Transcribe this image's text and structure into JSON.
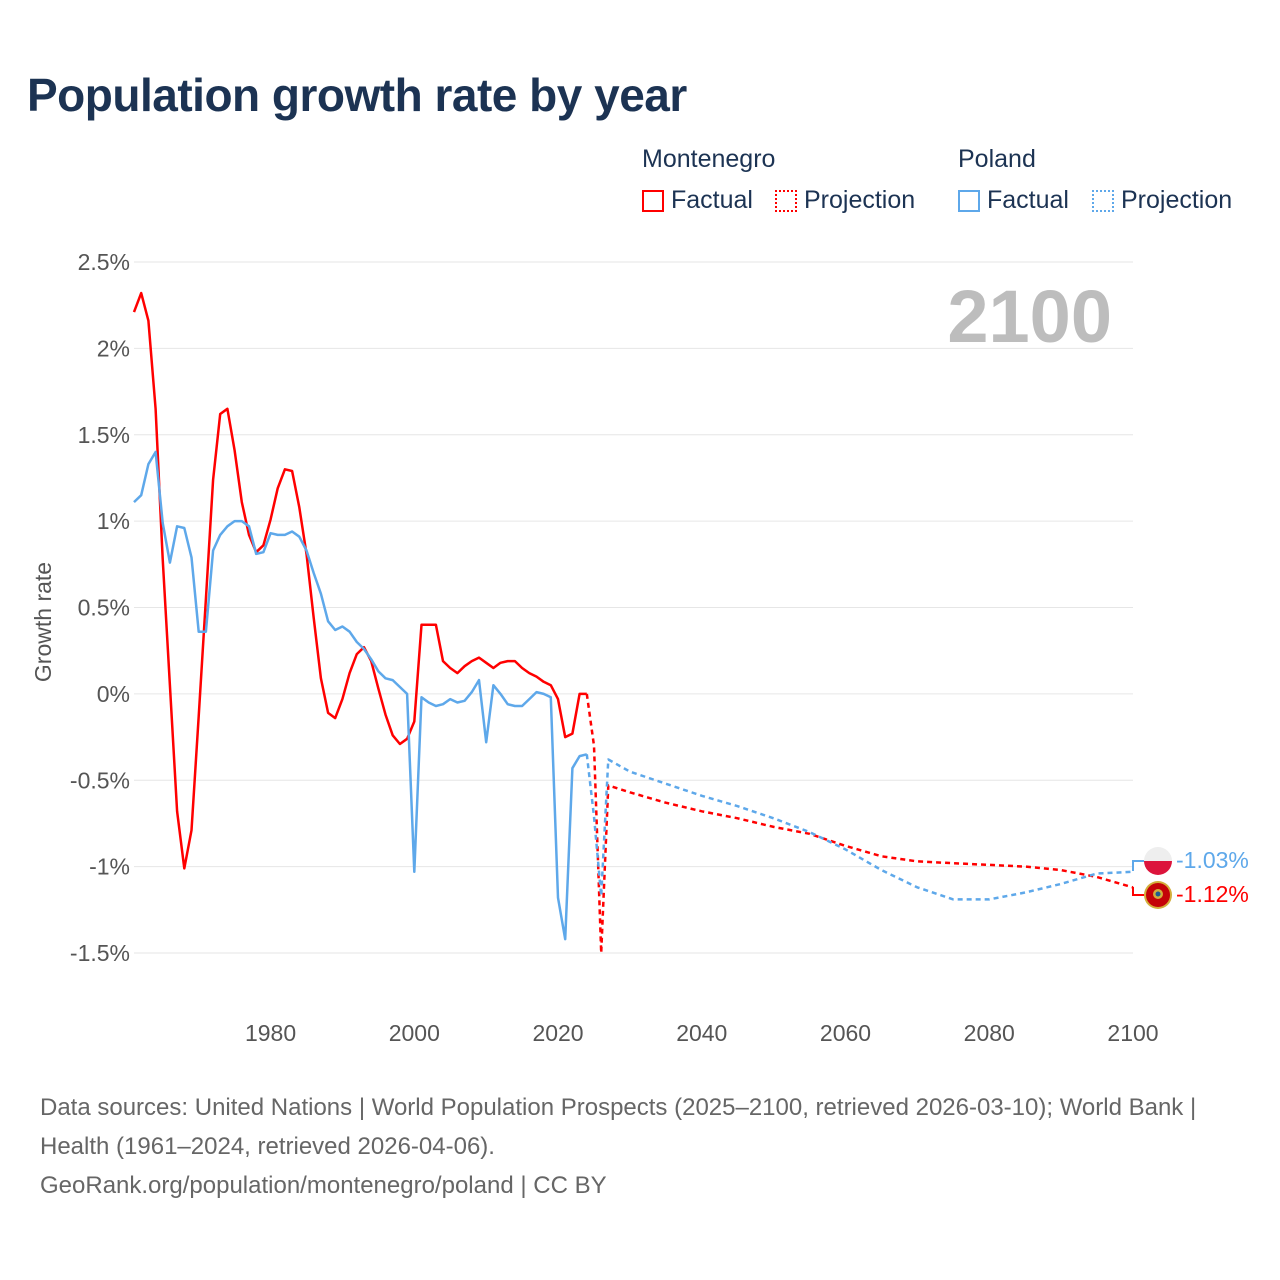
{
  "title": "Population growth rate by year",
  "legend": {
    "groups": [
      {
        "country": "Montenegro",
        "factual": "Factual",
        "projection": "Projection",
        "color": "#ff0000"
      },
      {
        "country": "Poland",
        "factual": "Factual",
        "projection": "Projection",
        "color": "#5ea8ea"
      }
    ]
  },
  "year_label": "2100",
  "end_labels": {
    "poland": "-1.03%",
    "montenegro": "-1.12%"
  },
  "footer": {
    "sources": "Data sources: United Nations | World Population Prospects (2025–2100, retrieved 2026-03-10); World Bank | Health (1961–2024, retrieved 2026-04-06).",
    "link": "GeoRank.org/population/montenegro/poland | CC BY"
  },
  "chart_data": {
    "type": "line",
    "title": "Population growth rate by year",
    "xlabel": "",
    "ylabel": "Growth rate",
    "xlim": [
      1961,
      2100
    ],
    "ylim": [
      -1.5,
      2.5
    ],
    "yticks": [
      2.5,
      2,
      1.5,
      1,
      0.5,
      0,
      -0.5,
      -1,
      -1.5
    ],
    "ytick_labels": [
      "2.5%",
      "2%",
      "1.5%",
      "1%",
      "0.5%",
      "0%",
      "-0.5%",
      "-1%",
      "-1.5%"
    ],
    "xticks": [
      1980,
      2000,
      2020,
      2040,
      2060,
      2080,
      2100
    ],
    "xtick_labels": [
      "1980",
      "2000",
      "2020",
      "2040",
      "2060",
      "2080",
      "2100"
    ],
    "grid": true,
    "legend_position": "top-right",
    "series": [
      {
        "name": "Montenegro Factual",
        "color": "#ff0000",
        "style": "solid",
        "x": [
          1961,
          1962,
          1963,
          1964,
          1965,
          1966,
          1967,
          1968,
          1969,
          1970,
          1971,
          1972,
          1973,
          1974,
          1975,
          1976,
          1977,
          1978,
          1979,
          1980,
          1981,
          1982,
          1983,
          1984,
          1985,
          1986,
          1987,
          1988,
          1989,
          1990,
          1991,
          1992,
          1993,
          1994,
          1995,
          1996,
          1997,
          1998,
          1999,
          2000,
          2001,
          2002,
          2003,
          2004,
          2005,
          2006,
          2007,
          2008,
          2009,
          2010,
          2011,
          2012,
          2013,
          2014,
          2015,
          2016,
          2017,
          2018,
          2019,
          2020,
          2021,
          2022,
          2023,
          2024
        ],
        "y": [
          2.21,
          2.32,
          2.16,
          1.65,
          0.78,
          0.05,
          -0.68,
          -1.01,
          -0.79,
          -0.13,
          0.55,
          1.24,
          1.62,
          1.65,
          1.41,
          1.11,
          0.92,
          0.82,
          0.86,
          1.01,
          1.19,
          1.3,
          1.29,
          1.08,
          0.81,
          0.44,
          0.09,
          -0.11,
          -0.14,
          -0.03,
          0.12,
          0.23,
          0.27,
          0.19,
          0.03,
          -0.12,
          -0.24,
          -0.29,
          -0.26,
          -0.16,
          0.4,
          0.4,
          0.4,
          0.19,
          0.15,
          0.12,
          0.16,
          0.19,
          0.21,
          0.18,
          0.15,
          0.18,
          0.19,
          0.19,
          0.15,
          0.12,
          0.1,
          0.07,
          0.05,
          -0.03,
          -0.25,
          -0.23,
          0.0,
          0.0
        ]
      },
      {
        "name": "Montenegro Projection",
        "color": "#ff0000",
        "style": "dotted",
        "x": [
          2024,
          2025,
          2026,
          2027,
          2030,
          2035,
          2040,
          2045,
          2050,
          2055,
          2060,
          2065,
          2070,
          2075,
          2080,
          2085,
          2090,
          2095,
          2100
        ],
        "y": [
          0.0,
          -0.3,
          -1.5,
          -0.53,
          -0.57,
          -0.63,
          -0.68,
          -0.72,
          -0.77,
          -0.81,
          -0.88,
          -0.94,
          -0.97,
          -0.98,
          -0.99,
          -1.0,
          -1.02,
          -1.06,
          -1.12
        ]
      },
      {
        "name": "Poland Factual",
        "color": "#5ea8ea",
        "style": "solid",
        "x": [
          1961,
          1962,
          1963,
          1964,
          1965,
          1966,
          1967,
          1968,
          1969,
          1970,
          1971,
          1972,
          1973,
          1974,
          1975,
          1976,
          1977,
          1978,
          1979,
          1980,
          1981,
          1982,
          1983,
          1984,
          1985,
          1986,
          1987,
          1988,
          1989,
          1990,
          1991,
          1992,
          1993,
          1994,
          1995,
          1996,
          1997,
          1998,
          1999,
          2000,
          2001,
          2002,
          2003,
          2004,
          2005,
          2006,
          2007,
          2008,
          2009,
          2010,
          2011,
          2012,
          2013,
          2014,
          2015,
          2016,
          2017,
          2018,
          2019,
          2020,
          2021,
          2022,
          2023,
          2024
        ],
        "y": [
          1.11,
          1.15,
          1.33,
          1.4,
          0.99,
          0.76,
          0.97,
          0.96,
          0.79,
          0.36,
          0.36,
          0.83,
          0.92,
          0.97,
          1.0,
          1.0,
          0.97,
          0.81,
          0.82,
          0.93,
          0.92,
          0.92,
          0.94,
          0.91,
          0.83,
          0.7,
          0.58,
          0.42,
          0.37,
          0.39,
          0.36,
          0.3,
          0.26,
          0.2,
          0.13,
          0.09,
          0.08,
          0.04,
          0.0,
          -1.03,
          -0.02,
          -0.05,
          -0.07,
          -0.06,
          -0.03,
          -0.05,
          -0.04,
          0.01,
          0.08,
          -0.28,
          0.05,
          0.0,
          -0.06,
          -0.07,
          -0.07,
          -0.03,
          0.01,
          0.0,
          -0.02,
          -1.18,
          -1.42,
          -0.43,
          -0.36,
          -0.35
        ]
      },
      {
        "name": "Poland Projection",
        "color": "#5ea8ea",
        "style": "dotted",
        "x": [
          2024,
          2025,
          2026,
          2027,
          2030,
          2035,
          2040,
          2045,
          2050,
          2055,
          2060,
          2065,
          2070,
          2075,
          2080,
          2085,
          2090,
          2095,
          2100
        ],
        "y": [
          -0.35,
          -0.71,
          -1.17,
          -0.38,
          -0.45,
          -0.52,
          -0.59,
          -0.65,
          -0.72,
          -0.8,
          -0.9,
          -1.02,
          -1.12,
          -1.19,
          -1.19,
          -1.15,
          -1.1,
          -1.04,
          -1.03
        ]
      }
    ]
  }
}
